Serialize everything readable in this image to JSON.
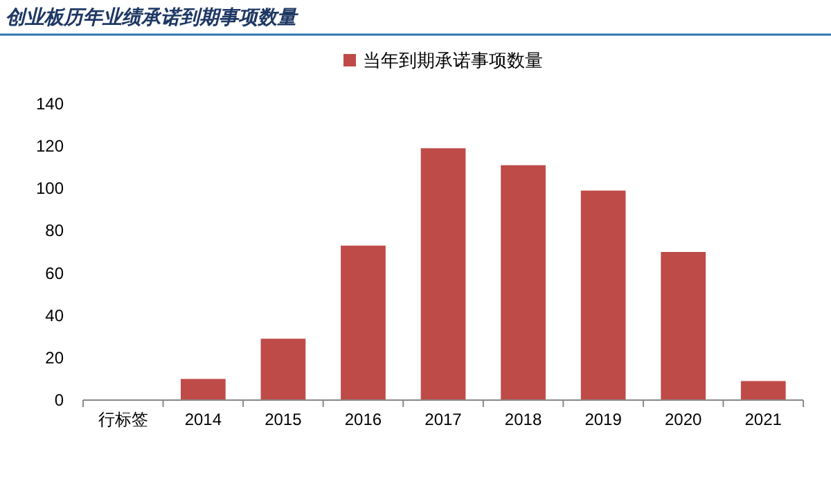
{
  "chart_data": {
    "type": "bar",
    "title": "创业板历年业绩承诺到期事项数量",
    "categories": [
      "行标签",
      "2014",
      "2015",
      "2016",
      "2017",
      "2018",
      "2019",
      "2020",
      "2021"
    ],
    "series": [
      {
        "name": "当年到期承诺事项数量",
        "color": "#be4b48",
        "values": [
          null,
          10,
          29,
          73,
          119,
          111,
          99,
          70,
          9
        ]
      }
    ],
    "ylim": [
      0,
      140
    ],
    "yticks": [
      0,
      20,
      40,
      60,
      80,
      100,
      120,
      140
    ],
    "legend": "top"
  }
}
